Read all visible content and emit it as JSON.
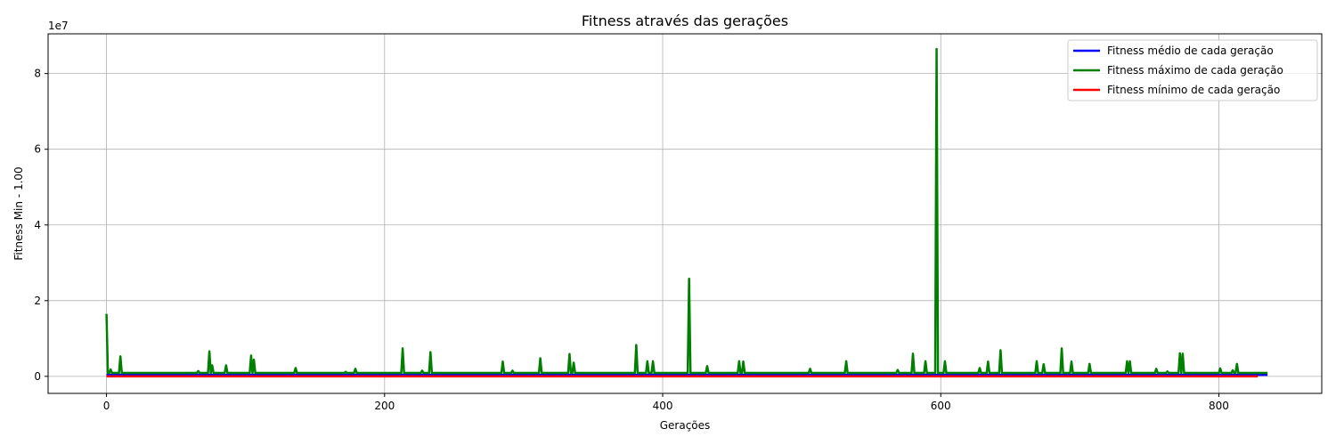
{
  "chart_data": {
    "type": "line",
    "title": "Fitness através das gerações",
    "xlabel": "Gerações",
    "ylabel": "Fitness Min -   1.00",
    "y_offset_text": "1e7",
    "xlim": [
      -42,
      874
    ],
    "ylim": [
      -4500000,
      90500000
    ],
    "xticks": [
      0,
      200,
      400,
      600,
      800
    ],
    "yticks": [
      0,
      20000000,
      40000000,
      60000000,
      80000000
    ],
    "ytick_labels": [
      "0",
      "2",
      "4",
      "6",
      "8"
    ],
    "grid": true,
    "legend_position": "top-right",
    "x_end": 835,
    "min_end": 828,
    "base_max": 900000,
    "series": [
      {
        "name": "Fitness médio de cada geração",
        "color": "#0000ff",
        "baseline": 400000,
        "spikes": []
      },
      {
        "name": "Fitness máximo de cada geração",
        "color": "#008000",
        "baseline": 900000,
        "spikes": [
          [
            0,
            16500000
          ],
          [
            3,
            1800000
          ],
          [
            10,
            5300000
          ],
          [
            66,
            1400000
          ],
          [
            74,
            6600000
          ],
          [
            76,
            2900000
          ],
          [
            86,
            2900000
          ],
          [
            104,
            5500000
          ],
          [
            106,
            4400000
          ],
          [
            136,
            2200000
          ],
          [
            172,
            1200000
          ],
          [
            179,
            2000000
          ],
          [
            213,
            7400000
          ],
          [
            227,
            1500000
          ],
          [
            233,
            6400000
          ],
          [
            285,
            3900000
          ],
          [
            292,
            1500000
          ],
          [
            312,
            4800000
          ],
          [
            333,
            5900000
          ],
          [
            336,
            3600000
          ],
          [
            381,
            8300000
          ],
          [
            389,
            4000000
          ],
          [
            393,
            4000000
          ],
          [
            419,
            25800000
          ],
          [
            432,
            2700000
          ],
          [
            455,
            4000000
          ],
          [
            458,
            3900000
          ],
          [
            506,
            2000000
          ],
          [
            532,
            4000000
          ],
          [
            569,
            1700000
          ],
          [
            580,
            6000000
          ],
          [
            589,
            4000000
          ],
          [
            597,
            86500000
          ],
          [
            603,
            4000000
          ],
          [
            628,
            2200000
          ],
          [
            634,
            3900000
          ],
          [
            643,
            6900000
          ],
          [
            669,
            4000000
          ],
          [
            674,
            3200000
          ],
          [
            687,
            7400000
          ],
          [
            694,
            3900000
          ],
          [
            707,
            3300000
          ],
          [
            734,
            4000000
          ],
          [
            736,
            4000000
          ],
          [
            755,
            2000000
          ],
          [
            763,
            1300000
          ],
          [
            772,
            6100000
          ],
          [
            774,
            6000000
          ],
          [
            801,
            2100000
          ],
          [
            810,
            1600000
          ],
          [
            813,
            3300000
          ]
        ]
      },
      {
        "name": "Fitness mínimo de cada geração",
        "color": "#ff0000",
        "baseline": 0,
        "spikes": []
      }
    ]
  }
}
